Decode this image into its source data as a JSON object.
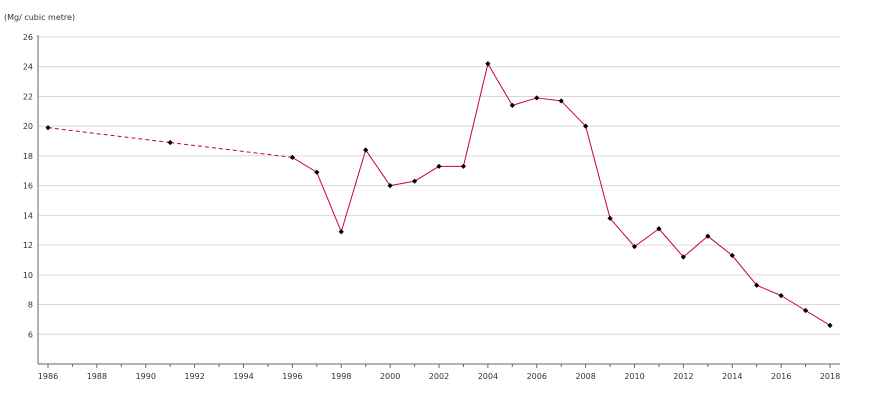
{
  "chart_data": {
    "type": "line",
    "title": "",
    "ylabel": "(Mg/ cubic metre)",
    "xlabel": "",
    "xlim": [
      1986,
      2018
    ],
    "ylim": [
      4,
      26
    ],
    "x_ticks": [
      1986,
      1988,
      1990,
      1992,
      1994,
      1996,
      1998,
      2000,
      2002,
      2004,
      2006,
      2008,
      2010,
      2012,
      2014,
      2016,
      2018
    ],
    "y_ticks": [
      6,
      8,
      10,
      12,
      14,
      16,
      18,
      20,
      22,
      24,
      26
    ],
    "grid": "horizontal",
    "legend": "none",
    "line_color": "#cc0033",
    "marker_color": "#000000",
    "series": [
      {
        "points": [
          {
            "x": 1986,
            "y": 19.9
          },
          {
            "x": 1991,
            "y": 18.9
          },
          {
            "x": 1996,
            "y": 17.9
          },
          {
            "x": 1997,
            "y": 16.9
          },
          {
            "x": 1998,
            "y": 12.9
          },
          {
            "x": 1999,
            "y": 18.4
          },
          {
            "x": 2000,
            "y": 16.0
          },
          {
            "x": 2001,
            "y": 16.3
          },
          {
            "x": 2002,
            "y": 17.3
          },
          {
            "x": 2003,
            "y": 17.3
          },
          {
            "x": 2004,
            "y": 24.2
          },
          {
            "x": 2005,
            "y": 21.4
          },
          {
            "x": 2006,
            "y": 21.9
          },
          {
            "x": 2007,
            "y": 21.7
          },
          {
            "x": 2008,
            "y": 20.0
          },
          {
            "x": 2009,
            "y": 13.8
          },
          {
            "x": 2010,
            "y": 11.9
          },
          {
            "x": 2011,
            "y": 13.1
          },
          {
            "x": 2012,
            "y": 11.2
          },
          {
            "x": 2013,
            "y": 12.6
          },
          {
            "x": 2014,
            "y": 11.3
          },
          {
            "x": 2015,
            "y": 9.3
          },
          {
            "x": 2016,
            "y": 8.6
          },
          {
            "x": 2017,
            "y": 7.6
          },
          {
            "x": 2018,
            "y": 6.6
          }
        ]
      }
    ]
  }
}
